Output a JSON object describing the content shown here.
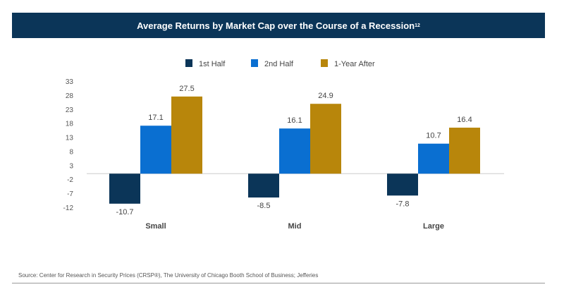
{
  "chart_data": {
    "type": "bar",
    "title": "Average Returns by Market Cap over the Course of a Recession",
    "title_superscript": "12",
    "categories": [
      "Small",
      "Mid",
      "Large"
    ],
    "series": [
      {
        "name": "1st Half",
        "color": "#0b3558",
        "values": [
          -10.7,
          -8.5,
          -7.8
        ],
        "labels": [
          "-10.7",
          "-8.5",
          "-7.8"
        ]
      },
      {
        "name": "2nd Half",
        "color": "#0a6fd1",
        "values": [
          17.1,
          16.1,
          10.7
        ],
        "labels": [
          "17.1",
          "16.1",
          "10.7"
        ]
      },
      {
        "name": "1-Year After",
        "color": "#b8860b",
        "values": [
          27.5,
          24.9,
          16.4
        ],
        "labels": [
          "27.5",
          "24.9",
          "16.4"
        ]
      }
    ],
    "yticks": [
      33,
      28,
      23,
      18,
      13,
      8,
      3,
      -2,
      -7,
      -12
    ],
    "ylim": [
      -12,
      33
    ],
    "xlabel": "",
    "ylabel": "",
    "grid": false,
    "legend": "top-center"
  },
  "source": "Source: Center for Research in Security Prices (CRSP®), The University of Chicago Booth School of Business; Jefferies"
}
